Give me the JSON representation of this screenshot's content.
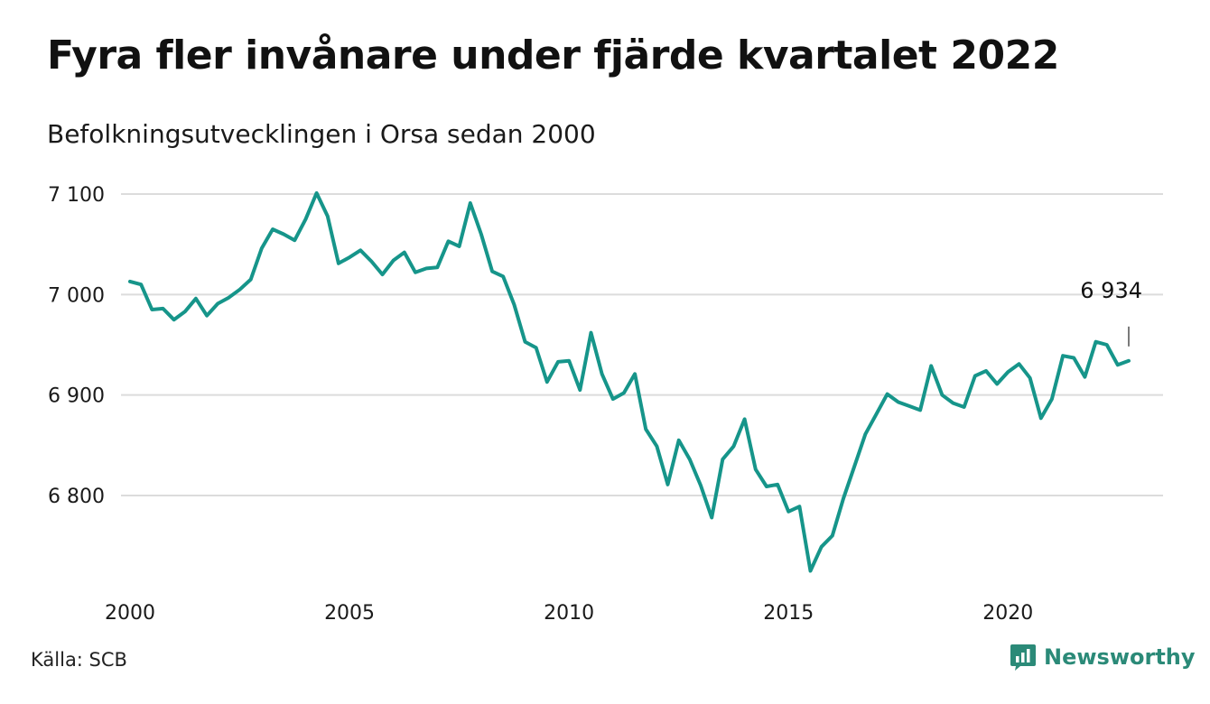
{
  "header": {
    "title": "Fyra fler invånare under fjärde kvartalet 2022",
    "subtitle": "Befolkningsutvecklingen i Orsa sedan 2000"
  },
  "footer": {
    "source": "Källa: SCB",
    "brand": "Newsworthy"
  },
  "colors": {
    "line": "#16958a",
    "grid": "#dcdcdc",
    "brand": "#2b8a78"
  },
  "chart_data": {
    "type": "line",
    "title": "Fyra fler invånare under fjärde kvartalet 2022",
    "subtitle": "Befolkningsutvecklingen i Orsa sedan 2000",
    "xlabel": "",
    "ylabel": "",
    "xlim": [
      2000,
      2023
    ],
    "ylim": [
      6700,
      7115
    ],
    "y_ticks": [
      6800,
      6900,
      7000,
      7100
    ],
    "y_tick_labels": [
      "6 800",
      "6 900",
      "7 000",
      "7 100"
    ],
    "x_ticks": [
      2000,
      2005,
      2010,
      2015,
      2020
    ],
    "x_tick_labels": [
      "2000",
      "2005",
      "2010",
      "2015",
      "2020"
    ],
    "grid": "horizontal",
    "annotation": {
      "text": "6 934",
      "x": 2022.75,
      "y": 6934
    },
    "series": [
      {
        "x": [
          2000.0,
          2000.25,
          2000.5,
          2000.75,
          2001.0,
          2001.25,
          2001.5,
          2001.75,
          2002.0,
          2002.25,
          2002.5,
          2002.75,
          2003.0,
          2003.25,
          2003.5,
          2003.75,
          2004.0,
          2004.25,
          2004.5,
          2004.75,
          2005.0,
          2005.25,
          2005.5,
          2005.75,
          2006.0,
          2006.25,
          2006.5,
          2006.75,
          2007.0,
          2007.25,
          2007.5,
          2007.75,
          2008.0,
          2008.25,
          2008.5,
          2008.75,
          2009.0,
          2009.25,
          2009.5,
          2009.75,
          2010.0,
          2010.25,
          2010.5,
          2010.75,
          2011.0,
          2011.25,
          2011.5,
          2011.75,
          2012.0,
          2012.25,
          2012.5,
          2012.75,
          2013.0,
          2013.25,
          2013.5,
          2013.75,
          2014.0,
          2014.25,
          2014.5,
          2014.75,
          2015.0,
          2015.25,
          2015.5,
          2015.75,
          2016.0,
          2016.25,
          2016.5,
          2016.75,
          2017.0,
          2017.25,
          2017.5,
          2017.75,
          2018.0,
          2018.25,
          2018.5,
          2018.75,
          2019.0,
          2019.25,
          2019.5,
          2019.75,
          2020.0,
          2020.25,
          2020.5,
          2020.75,
          2021.0,
          2021.25,
          2021.5,
          2021.75,
          2022.0,
          2022.25,
          2022.5,
          2022.75
        ],
        "values": [
          7013,
          7010,
          6985,
          6986,
          6975,
          6983,
          6996,
          6979,
          6991,
          6997,
          7005,
          7015,
          7046,
          7065,
          7060,
          7054,
          7075,
          7101,
          7078,
          7031,
          7037,
          7044,
          7033,
          7020,
          7034,
          7042,
          7022,
          7026,
          7027,
          7053,
          7048,
          7091,
          7060,
          7023,
          7018,
          6990,
          6953,
          6947,
          6913,
          6933,
          6934,
          6905,
          6962,
          6921,
          6896,
          6902,
          6921,
          6866,
          6849,
          6811,
          6855,
          6836,
          6810,
          6778,
          6836,
          6849,
          6876,
          6826,
          6809,
          6811,
          6784,
          6789,
          6725,
          6749,
          6760,
          6797,
          6829,
          6861,
          6881,
          6901,
          6893,
          6889,
          6885,
          6929,
          6900,
          6892,
          6888,
          6919,
          6924,
          6911,
          6923,
          6931,
          6917,
          6877,
          6896,
          6939,
          6937,
          6918,
          6953,
          6950,
          6930,
          6934
        ]
      }
    ]
  }
}
